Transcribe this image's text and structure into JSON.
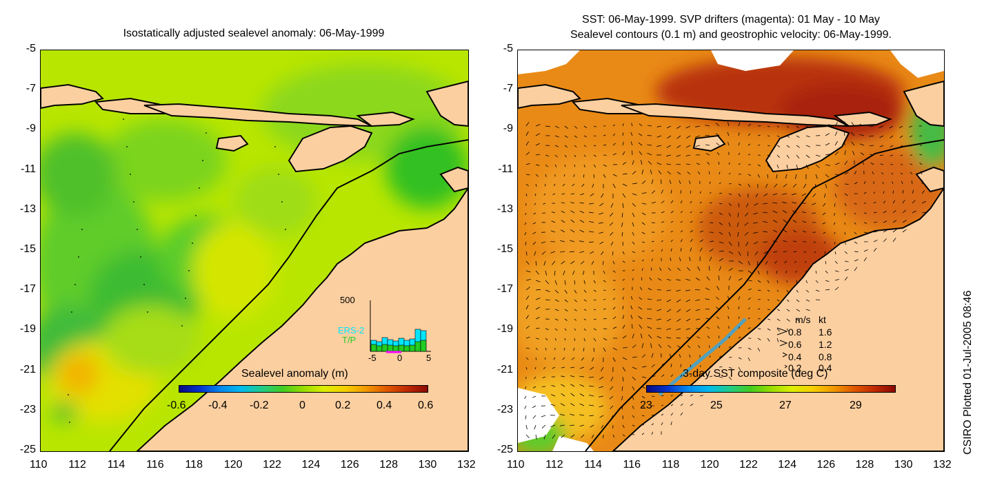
{
  "left_panel": {
    "title": "Isostatically adjusted sealevel anomaly: 06-May-1999",
    "colorbar_label": "Sealevel anomaly (m)",
    "colorbar_ticks": [
      "-0.6",
      "-0.4",
      "-0.2",
      "0",
      "0.2",
      "0.4",
      "0.6"
    ],
    "inset": {
      "ymax_label": "500",
      "series": [
        "ERS-2",
        "T/P"
      ],
      "x_ticks": [
        "-5",
        "0",
        "5"
      ],
      "ers_color": "#00e5ff",
      "tp_color": "#22cc22"
    }
  },
  "right_panel": {
    "title_line1": "SST: 06-May-1999. SVP drifters (magenta): 01 May - 10 May",
    "title_line2": "Sealevel contours (0.1 m) and geostrophic velocity: 06-May-1999.",
    "colorbar_label": "3-day SST composite (deg C)",
    "colorbar_ticks": [
      "23",
      "25",
      "27",
      "29"
    ],
    "velocity_legend": {
      "header_ms": "m/s",
      "header_kt": "kt",
      "rows": [
        {
          "ms": "0.8",
          "kt": "1.6"
        },
        {
          "ms": "0.6",
          "kt": "1.2"
        },
        {
          "ms": "0.4",
          "kt": "0.8"
        },
        {
          "ms": "0.2",
          "kt": "0.4"
        }
      ]
    }
  },
  "axes": {
    "y_ticks": [
      "-5",
      "-7",
      "-9",
      "-11",
      "-13",
      "-15",
      "-17",
      "-19",
      "-21",
      "-23",
      "-25"
    ],
    "x_ticks": [
      "110",
      "112",
      "114",
      "116",
      "118",
      "120",
      "122",
      "124",
      "126",
      "128",
      "130",
      "132"
    ]
  },
  "credit": "CSIRO Plotted 01-Jul-2005 08:46",
  "colors": {
    "land": "#fccfa0",
    "coast": "#000000",
    "ocean_mid": "#ccee00",
    "sst_warm": "#e07a10"
  }
}
